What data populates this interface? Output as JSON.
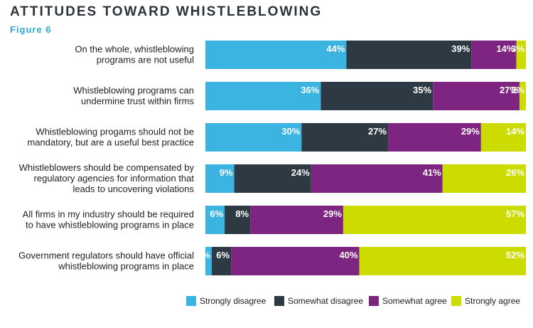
{
  "header": {
    "title": "ATTITUDES TOWARD WHISTLEBLOWING",
    "subtitle": "Figure 6"
  },
  "chart_data": {
    "type": "bar",
    "orientation": "horizontal",
    "stacked": true,
    "title": "ATTITUDES TOWARD WHISTLEBLOWING",
    "xlim": [
      0,
      100
    ],
    "grid": false,
    "legend_position": "bottom-right",
    "categories": [
      [
        "On the whole, whistleblowing",
        "programs are not useful"
      ],
      [
        "Whistleblowing programs can",
        "undermine trust within firms"
      ],
      [
        "Whistleblowing progams should not be",
        "mandatory, but are a useful best practice"
      ],
      [
        "Whistleblowers should be compensated by",
        "regulatory agencies for information that",
        "leads to uncovering violations"
      ],
      [
        "All firms in my industry should be required",
        "to have whistleblowing programs in place"
      ],
      [
        "Government regulators should have official",
        "whistleblowing programs in place"
      ]
    ],
    "series": [
      {
        "name": "Strongly disagree",
        "color": "#3bb4e2",
        "values": [
          44,
          36,
          30,
          9,
          6,
          2
        ]
      },
      {
        "name": "Somewhat disagree",
        "color": "#2d3a43",
        "values": [
          39,
          35,
          27,
          24,
          8,
          6
        ]
      },
      {
        "name": "Somewhat agree",
        "color": "#7d2580",
        "values": [
          14,
          27,
          29,
          41,
          29,
          40
        ]
      },
      {
        "name": "Strongly agree",
        "color": "#cddc00",
        "values": [
          3,
          2,
          14,
          26,
          57,
          52
        ]
      }
    ],
    "value_suffix": "%"
  }
}
